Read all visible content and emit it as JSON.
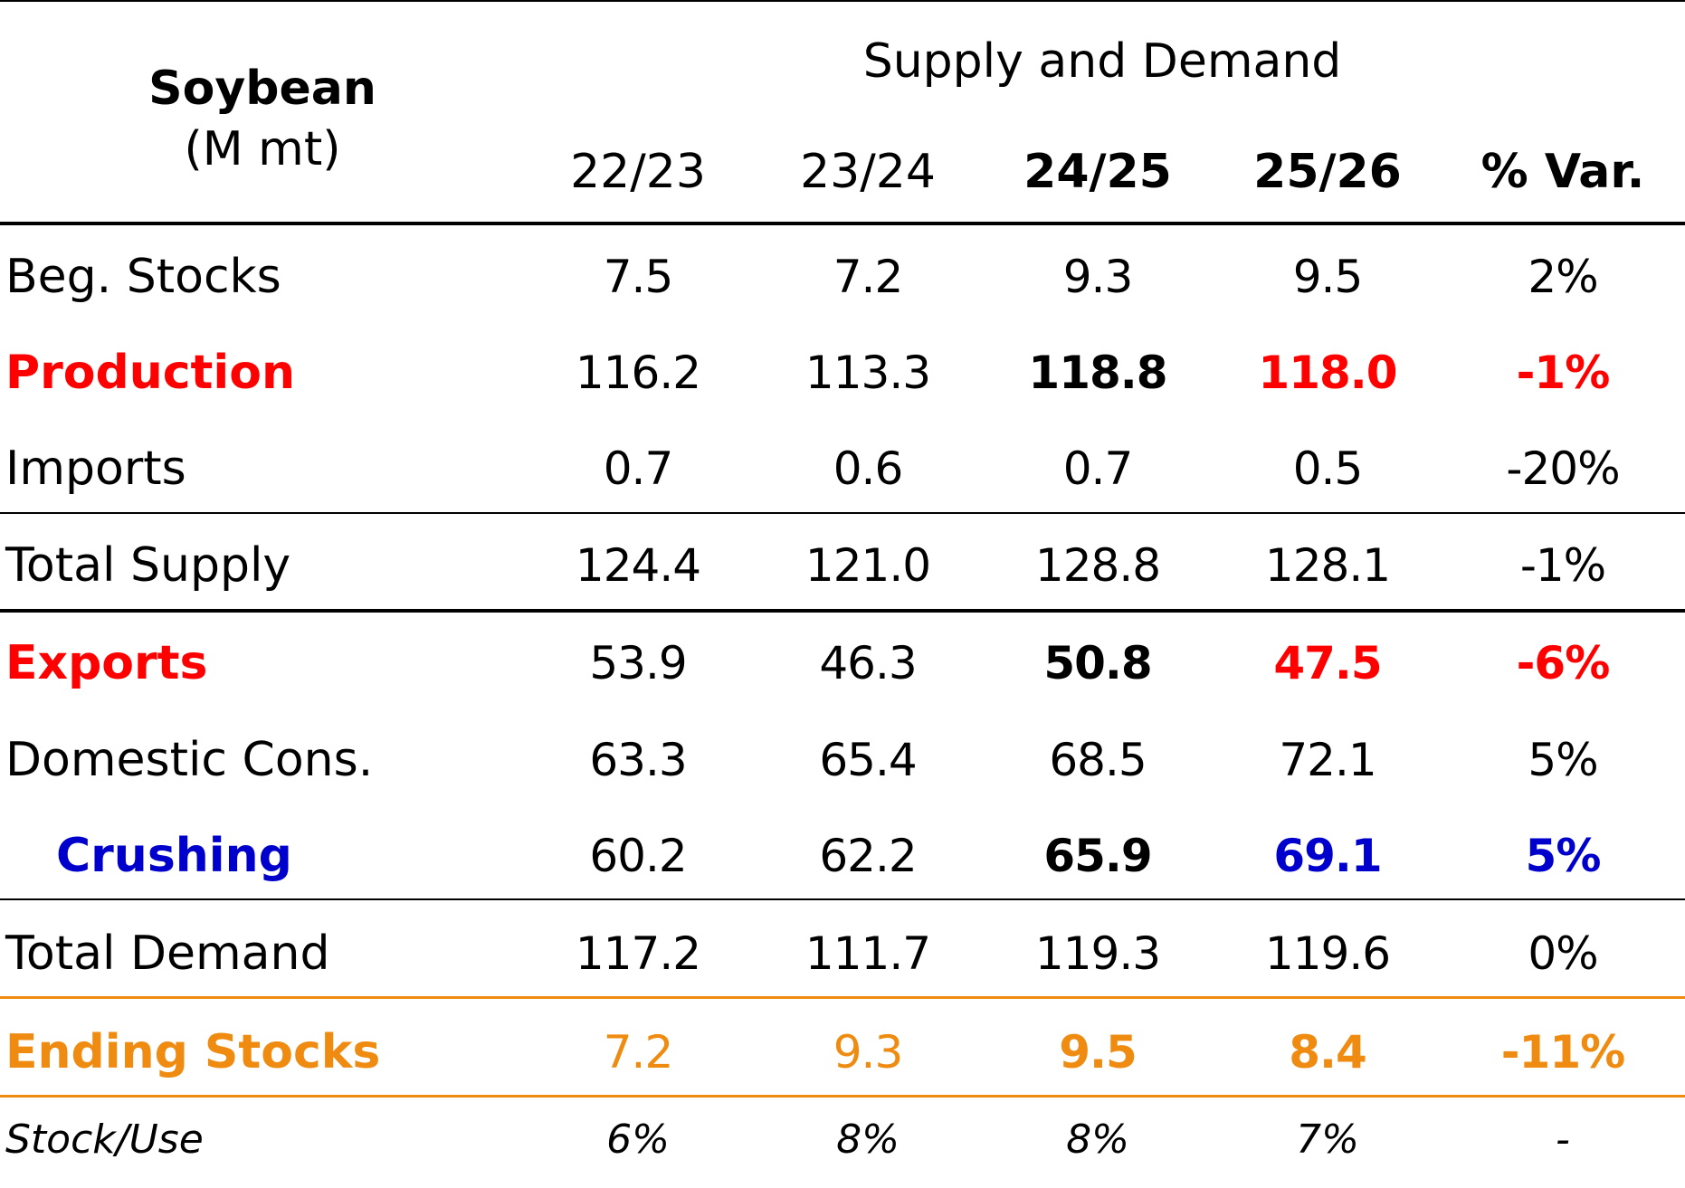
{
  "header": {
    "title": "Soybean",
    "unit": "(M mt)",
    "group": "Supply and Demand",
    "columns": [
      "22/23",
      "23/24",
      "24/25",
      "25/26",
      "% Var."
    ]
  },
  "colors": {
    "red": "#ff0000",
    "blue": "#0000cc",
    "orange": "#ee8b10",
    "black": "#000000"
  },
  "rows": [
    {
      "label": "Beg. Stocks",
      "values": [
        "7.5",
        "7.2",
        "9.3",
        "9.5",
        "2%"
      ]
    },
    {
      "label": "Production",
      "values": [
        "116.2",
        "113.3",
        "118.8",
        "118.0",
        "-1%"
      ]
    },
    {
      "label": "Imports",
      "values": [
        "0.7",
        "0.6",
        "0.7",
        "0.5",
        "-20%"
      ]
    },
    {
      "label": "Total Supply",
      "values": [
        "124.4",
        "121.0",
        "128.8",
        "128.1",
        "-1%"
      ]
    },
    {
      "label": "Exports",
      "values": [
        "53.9",
        "46.3",
        "50.8",
        "47.5",
        "-6%"
      ]
    },
    {
      "label": "Domestic Cons.",
      "values": [
        "63.3",
        "65.4",
        "68.5",
        "72.1",
        "5%"
      ]
    },
    {
      "label": "Crushing",
      "values": [
        "60.2",
        "62.2",
        "65.9",
        "69.1",
        "5%"
      ]
    },
    {
      "label": "Total Demand",
      "values": [
        "117.2",
        "111.7",
        "119.3",
        "119.6",
        "0%"
      ]
    },
    {
      "label": "Ending Stocks",
      "values": [
        "7.2",
        "9.3",
        "9.5",
        "8.4",
        "-11%"
      ]
    },
    {
      "label": "Stock/Use",
      "values": [
        "6%",
        "8%",
        "8%",
        "7%",
        "-"
      ]
    }
  ]
}
